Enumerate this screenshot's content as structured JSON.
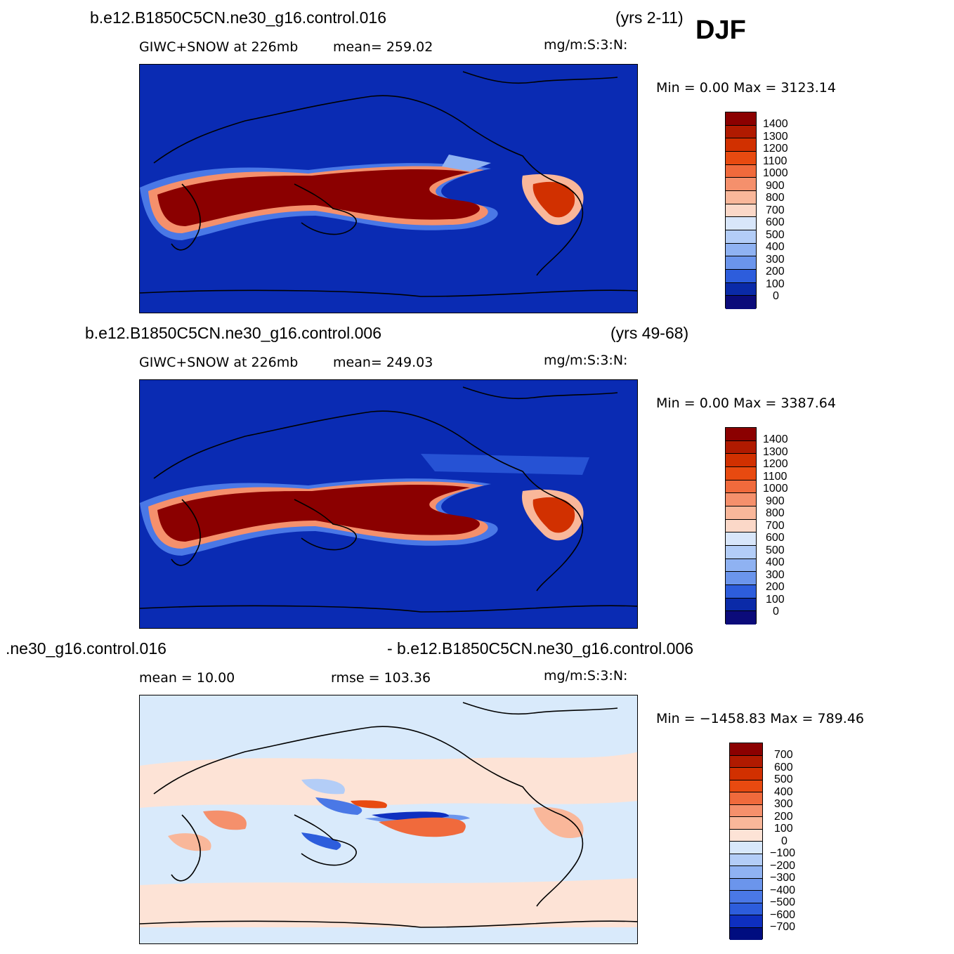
{
  "season": "DJF",
  "panels": [
    {
      "case_title": "b.e12.B1850C5CN.ne30_g16.control.016",
      "years": "(yrs 2-11)",
      "field": "GIWC+SNOW at 226mb",
      "stat": "mean= 259.02",
      "units": "mg/m:S:3:N:",
      "minmax": "Min =     0.00  Max  =  3123.14",
      "levels": [
        "1400",
        "1300",
        "1200",
        "1100",
        "1000",
        "900",
        "800",
        "700",
        "600",
        "500",
        "400",
        "300",
        "200",
        "100",
        "0"
      ]
    },
    {
      "case_title": "b.e12.B1850C5CN.ne30_g16.control.006",
      "years": "(yrs 49-68)",
      "field": "GIWC+SNOW at 226mb",
      "stat": "mean= 249.03",
      "units": "mg/m:S:3:N:",
      "minmax": "Min =     0.00  Max  =  3387.64",
      "levels": [
        "1400",
        "1300",
        "1200",
        "1100",
        "1000",
        "900",
        "800",
        "700",
        "600",
        "500",
        "400",
        "300",
        "200",
        "100",
        "0"
      ]
    },
    {
      "case_left": ".ne30_g16.control.016",
      "case_right": "- b.e12.B1850C5CN.ne30_g16.control.006",
      "mean": "mean  =    10.00",
      "rmse": "rmse  =  103.36",
      "units": "mg/m:S:3:N:",
      "minmax": "Min  = −1458.83  Max  =  789.46",
      "levels": [
        "700",
        "600",
        "500",
        "400",
        "300",
        "200",
        "100",
        "0",
        "−100",
        "−200",
        "−300",
        "−400",
        "−500",
        "−600",
        "−700"
      ]
    }
  ],
  "colors": {
    "abs_scale": [
      "#8b0000",
      "#b01a00",
      "#d13000",
      "#e84a10",
      "#f06a3c",
      "#f5906c",
      "#f9b79a",
      "#fbd8c8",
      "#fdf0e6",
      "#d8e6fa",
      "#b3cdf7",
      "#8fb2f2",
      "#6b95ec",
      "#4a78e6",
      "#2d5ddc",
      "#1942c8",
      "#0a2aa8",
      "#0b0b7a"
    ],
    "diff_scale": [
      "#8b0000",
      "#b01a00",
      "#d13000",
      "#e84a10",
      "#f06a3c",
      "#f5906c",
      "#f9b79a",
      "#fde3d6",
      "#d8e8fb",
      "#b3cdf7",
      "#8fb2f2",
      "#6b95ec",
      "#4a78e6",
      "#2d5ddc",
      "#0e2fc0",
      "#000d80"
    ],
    "map_background": "#0a2bb3",
    "diff_background": "#d9eafb"
  }
}
